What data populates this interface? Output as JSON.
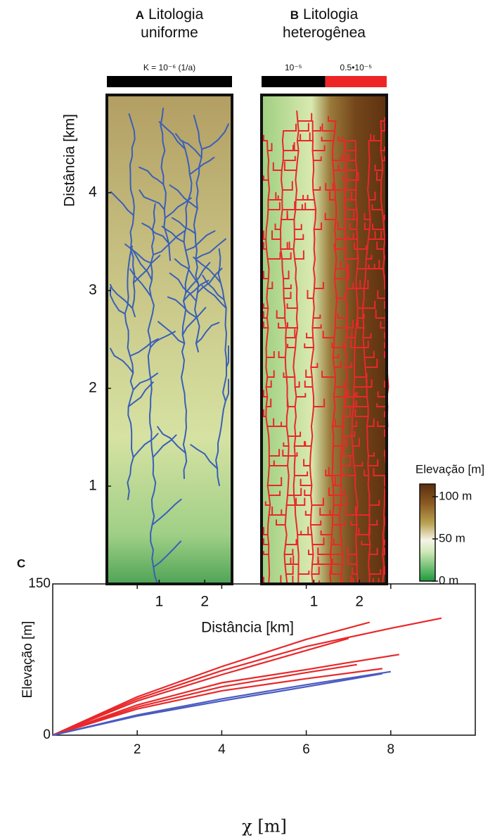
{
  "chart_data": [
    {
      "type": "raster",
      "label": "A",
      "title": "Litologia uniforme",
      "bands": [
        {
          "label": "K = 10⁻⁶ (1/a)",
          "color": "#000000",
          "from": -0.15,
          "to": 2.6
        }
      ],
      "xlim": [
        -0.15,
        2.6
      ],
      "xticks": [
        1,
        2
      ],
      "ylim": [
        0,
        5
      ],
      "yticks": [
        1,
        2,
        3,
        4
      ],
      "ylabel": "Distância [km]",
      "xlabel": "Distância [km]",
      "river_color": "#3a5fb8"
    },
    {
      "type": "raster",
      "label": "B",
      "title": "Litologia heterogênea",
      "bands": [
        {
          "label": "10⁻⁵",
          "color": "#000000",
          "from": -0.15,
          "to": 1.25
        },
        {
          "label": "0.5•10⁻⁵",
          "color": "#ee2526",
          "from": 1.25,
          "to": 2.6
        }
      ],
      "xlim": [
        -0.15,
        2.6
      ],
      "xticks": [
        1,
        2
      ],
      "ylim": [
        0,
        5
      ],
      "river_color": "#e8282a",
      "colorbar": {
        "title": "Elevação [m]",
        "lim": [
          0,
          115
        ],
        "ticks": [
          {
            "value": 0,
            "label": "0 m"
          },
          {
            "value": 50,
            "label": "50 m"
          },
          {
            "value": 100,
            "label": "100 m"
          }
        ]
      }
    },
    {
      "type": "line",
      "label": "C",
      "xlabel": "χ [m]",
      "ylabel": "Elevação [m]",
      "xlim": [
        0,
        10
      ],
      "xticks": [
        2,
        4,
        6,
        8
      ],
      "ylim": [
        0,
        150
      ],
      "yticks": [
        0,
        150
      ],
      "series": [
        {
          "color": "#e8282a",
          "x": [
            0,
            2,
            4,
            6,
            7.5
          ],
          "values": [
            0,
            38,
            68,
            95,
            112
          ]
        },
        {
          "color": "#e8282a",
          "x": [
            0,
            2,
            4,
            6,
            8,
            9.2
          ],
          "values": [
            0,
            36,
            64,
            88,
            106,
            116
          ]
        },
        {
          "color": "#e8282a",
          "x": [
            0,
            2,
            4,
            6,
            7,
            8.2
          ],
          "values": [
            0,
            30,
            52,
            65,
            72,
            80
          ]
        },
        {
          "color": "#e8282a",
          "x": [
            0,
            2,
            4,
            6,
            7.2
          ],
          "values": [
            0,
            28,
            48,
            62,
            70
          ]
        },
        {
          "color": "#e8282a",
          "x": [
            0,
            2,
            4,
            6,
            7.8
          ],
          "values": [
            0,
            26,
            44,
            56,
            66
          ]
        },
        {
          "color": "#e8282a",
          "x": [
            0,
            2,
            4,
            6,
            7
          ],
          "values": [
            0,
            34,
            60,
            84,
            96
          ]
        },
        {
          "color": "#4a5bbf",
          "x": [
            0,
            2,
            4,
            6,
            8
          ],
          "values": [
            0,
            20,
            36,
            50,
            63
          ]
        },
        {
          "color": "#4a5bbf",
          "x": [
            0,
            2,
            4,
            6,
            7.8
          ],
          "values": [
            0,
            19,
            34,
            48,
            61
          ]
        }
      ]
    }
  ]
}
